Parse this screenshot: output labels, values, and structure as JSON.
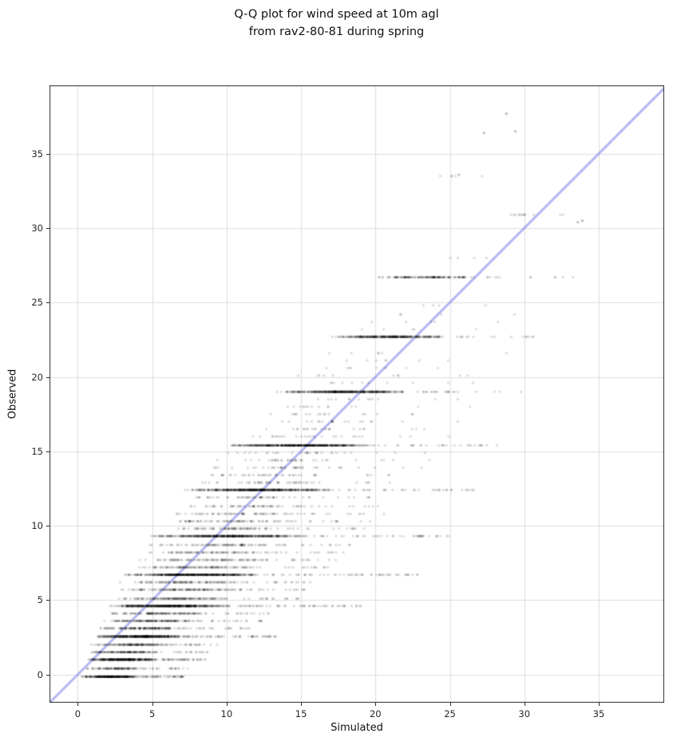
{
  "chart_data": {
    "type": "scatter",
    "title": "Q-Q plot for wind speed at 10m agl\nfrom rav2-80-81 during spring",
    "xlabel": "Simulated",
    "ylabel": "Observed",
    "xlim": [
      -1.9,
      39.4
    ],
    "ylim": [
      -1.9,
      39.6
    ],
    "xticks": [
      0,
      5,
      10,
      15,
      20,
      25,
      30,
      35
    ],
    "yticks": [
      0,
      5,
      10,
      15,
      20,
      25,
      30,
      35
    ],
    "grid": true,
    "legend": "none",
    "reference_line": "identity",
    "style": {
      "point_color": "#000000",
      "point_alpha": 0.13,
      "point_radius": 1.7,
      "line_color": "#7878e6",
      "line_alpha": 0.55,
      "line_width": 3,
      "grid_color": "#dedede",
      "spine_color": "#2b2b2b",
      "background": "#ffffff"
    },
    "bands_schema": [
      "observed_value",
      "sim_dense_min",
      "sim_dense_max",
      "n_dense",
      "sim_sparse_max",
      "n_sparse"
    ],
    "bands": [
      [
        -0.15,
        0.2,
        4.3,
        300,
        7.3,
        45
      ],
      [
        0.4,
        0.3,
        4.9,
        110,
        7.6,
        18
      ],
      [
        1.0,
        0.4,
        5.6,
        350,
        8.6,
        45
      ],
      [
        1.5,
        0.6,
        6.1,
        140,
        9.0,
        18
      ],
      [
        2.0,
        0.8,
        6.6,
        140,
        9.5,
        18
      ],
      [
        2.55,
        0.9,
        7.6,
        420,
        13.5,
        50
      ],
      [
        3.1,
        1.2,
        8.2,
        150,
        12.0,
        18
      ],
      [
        3.6,
        1.5,
        8.8,
        150,
        12.5,
        18
      ],
      [
        4.1,
        1.7,
        9.5,
        140,
        13.0,
        16
      ],
      [
        4.6,
        1.9,
        10.4,
        480,
        19.0,
        55
      ],
      [
        5.1,
        2.2,
        11.0,
        140,
        15.0,
        16
      ],
      [
        5.7,
        2.5,
        11.6,
        130,
        15.5,
        15
      ],
      [
        6.2,
        2.8,
        12.2,
        120,
        16.0,
        14
      ],
      [
        6.7,
        3.0,
        13.0,
        520,
        23.3,
        55
      ],
      [
        7.2,
        3.4,
        13.5,
        110,
        17.0,
        13
      ],
      [
        7.7,
        3.8,
        14.0,
        100,
        17.5,
        12
      ],
      [
        8.2,
        4.1,
        14.5,
        95,
        18.0,
        11
      ],
      [
        8.7,
        4.4,
        15.0,
        90,
        18.5,
        10
      ],
      [
        9.3,
        4.7,
        15.6,
        500,
        25.0,
        45
      ],
      [
        9.8,
        5.2,
        16.0,
        80,
        20.0,
        9
      ],
      [
        10.3,
        5.6,
        16.3,
        75,
        20.5,
        8
      ],
      [
        10.8,
        6.0,
        16.6,
        68,
        21.0,
        8
      ],
      [
        11.3,
        6.4,
        16.9,
        60,
        21.5,
        7
      ],
      [
        11.9,
        6.8,
        17.1,
        52,
        22.0,
        6
      ],
      [
        12.4,
        7.0,
        17.4,
        450,
        27.0,
        35
      ],
      [
        12.9,
        7.6,
        17.8,
        45,
        22.5,
        5
      ],
      [
        13.4,
        8.1,
        18.3,
        40,
        23.0,
        5
      ],
      [
        13.9,
        8.6,
        18.8,
        36,
        23.4,
        4
      ],
      [
        14.4,
        9.0,
        19.2,
        32,
        23.8,
        4
      ],
      [
        14.9,
        9.3,
        19.6,
        28,
        24.2,
        3
      ],
      [
        15.4,
        9.6,
        20.1,
        500,
        28.5,
        28
      ],
      [
        16.0,
        10.6,
        20.6,
        24,
        25.0,
        3
      ],
      [
        16.5,
        11.1,
        21.0,
        21,
        25.4,
        3
      ],
      [
        17.0,
        11.6,
        21.4,
        18,
        25.8,
        2
      ],
      [
        17.5,
        12.0,
        21.7,
        15,
        26.2,
        2
      ],
      [
        18.0,
        12.4,
        22.0,
        13,
        26.6,
        2
      ],
      [
        18.5,
        12.8,
        22.3,
        11,
        27.0,
        2
      ],
      [
        19.0,
        13.2,
        22.6,
        380,
        30.0,
        22
      ],
      [
        19.6,
        14.0,
        23.0,
        9,
        27.6,
        2
      ],
      [
        20.1,
        14.5,
        23.4,
        8,
        28.0,
        2
      ],
      [
        20.6,
        15.0,
        23.8,
        7,
        28.3,
        1
      ],
      [
        21.1,
        15.5,
        24.1,
        6,
        28.6,
        1
      ],
      [
        21.6,
        16.0,
        24.4,
        5,
        28.9,
        1
      ],
      [
        22.7,
        16.8,
        24.9,
        300,
        31.0,
        16
      ],
      [
        23.2,
        17.5,
        25.3,
        4,
        29.5,
        1
      ],
      [
        23.7,
        18.0,
        25.7,
        4,
        29.8,
        1
      ],
      [
        24.2,
        18.6,
        26.1,
        3,
        30.1,
        1
      ],
      [
        24.8,
        19.2,
        26.5,
        3,
        30.4,
        1
      ],
      [
        26.7,
        20.0,
        27.2,
        150,
        33.6,
        12
      ],
      [
        28.0,
        24.0,
        27.0,
        3,
        30.0,
        1
      ],
      [
        30.9,
        28.4,
        31.1,
        10,
        33.8,
        2
      ],
      [
        33.5,
        23.8,
        26.2,
        4,
        28.0,
        1
      ]
    ],
    "extra_points": [
      [
        27.3,
        36.4
      ],
      [
        28.8,
        37.7
      ],
      [
        29.4,
        36.5
      ],
      [
        33.6,
        30.4
      ],
      [
        33.9,
        30.5
      ],
      [
        25.6,
        33.6
      ]
    ]
  }
}
